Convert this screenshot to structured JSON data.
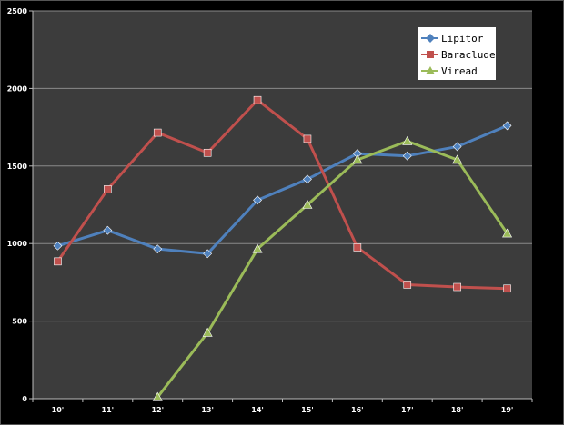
{
  "chart_data": {
    "type": "line",
    "categories": [
      "10'",
      "11'",
      "12'",
      "13'",
      "14'",
      "15'",
      "16'",
      "17'",
      "18'",
      "19'"
    ],
    "ylim": [
      0,
      2500
    ],
    "yticks": [
      0,
      500,
      1000,
      1500,
      2000,
      2500
    ],
    "grid": true,
    "legend_position": "top-right",
    "plot_background": "#3c3c3c",
    "series": [
      {
        "name": "Lipitor",
        "color": "#4f81bd",
        "marker": "diamond",
        "values": [
          985,
          1085,
          965,
          935,
          1280,
          1415,
          1580,
          1565,
          1625,
          1760
        ]
      },
      {
        "name": "Baraclude",
        "color": "#c0504d",
        "marker": "square",
        "values": [
          885,
          1350,
          1715,
          1585,
          1925,
          1675,
          975,
          735,
          720,
          710
        ]
      },
      {
        "name": "Viread",
        "color": "#9bbb59",
        "marker": "triangle",
        "values": [
          null,
          null,
          10,
          425,
          965,
          1250,
          1540,
          1660,
          1540,
          1065
        ]
      }
    ]
  }
}
